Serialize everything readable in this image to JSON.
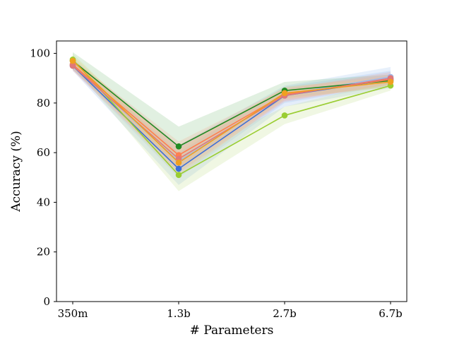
{
  "chart_data": {
    "type": "line",
    "title": "",
    "xlabel": "# Parameters",
    "ylabel": "Accuracy (%)",
    "categories": [
      "350m",
      "1.3b",
      "2.7b",
      "6.7b"
    ],
    "ylim": [
      0,
      105
    ],
    "yticks": [
      0,
      20,
      40,
      60,
      80,
      100
    ],
    "grid": false,
    "legend": "none",
    "series": [
      {
        "color": "#a0b8e8",
        "band_color": "#a8c8f0",
        "values": [
          95.5,
          56.5,
          83.5,
          90.5
        ],
        "lower": [
          93.5,
          50.0,
          80.0,
          87.0
        ],
        "upper": [
          98.0,
          63.0,
          87.0,
          94.5
        ]
      },
      {
        "color": "#3b6fd8",
        "band_color": "#9fc0ee",
        "values": [
          95.0,
          53.5,
          83.0,
          89.5
        ],
        "lower": [
          93.0,
          47.0,
          78.5,
          86.0
        ],
        "upper": [
          97.5,
          60.0,
          86.5,
          93.0
        ]
      },
      {
        "color": "#228b22",
        "band_color": "#94c894",
        "values": [
          97.0,
          62.5,
          85.0,
          89.0
        ],
        "lower": [
          93.5,
          54.0,
          82.0,
          86.5
        ],
        "upper": [
          100.5,
          70.5,
          88.5,
          91.5
        ]
      },
      {
        "color": "#9acd32",
        "band_color": "#c8e49a",
        "values": [
          97.5,
          51.0,
          75.0,
          87.0
        ],
        "lower": [
          95.0,
          44.5,
          71.5,
          85.0
        ],
        "upper": [
          100.0,
          58.0,
          78.5,
          89.0
        ]
      },
      {
        "color": "#ff7f50",
        "band_color": "#f2b49c",
        "values": [
          95.5,
          59.0,
          83.5,
          89.5
        ],
        "lower": [
          93.5,
          53.5,
          81.0,
          87.5
        ],
        "upper": [
          97.5,
          64.5,
          86.0,
          91.5
        ]
      },
      {
        "color": "#e07878",
        "band_color": "#e8a4a4",
        "values": [
          95.0,
          57.5,
          83.0,
          90.0
        ],
        "lower": [
          93.0,
          52.0,
          80.5,
          87.5
        ],
        "upper": [
          97.0,
          63.0,
          85.5,
          92.5
        ]
      },
      {
        "color": "#f0a020",
        "band_color": "#f4cc88",
        "values": [
          97.0,
          56.0,
          84.0,
          88.5
        ],
        "lower": [
          95.0,
          50.5,
          81.5,
          86.5
        ],
        "upper": [
          99.0,
          61.5,
          86.5,
          90.5
        ]
      }
    ]
  }
}
